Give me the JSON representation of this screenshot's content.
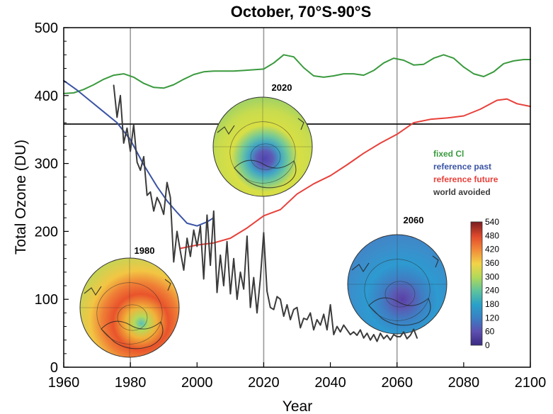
{
  "chart_data": {
    "type": "line",
    "title": "October, 70°S-90°S",
    "xlabel": "Year",
    "ylabel": "Total Ozone (DU)",
    "xlim": [
      1960,
      2100
    ],
    "ylim": [
      0,
      500
    ],
    "xticks": [
      "1960",
      "1980",
      "2000",
      "2020",
      "2040",
      "2060",
      "2080",
      "2100"
    ],
    "yticks": [
      "0",
      "100",
      "200",
      "300",
      "400",
      "500"
    ],
    "reference_lines": {
      "vertical_years": [
        1980,
        2020,
        2060
      ],
      "horizontal_value": 358
    },
    "legend_placement": "right",
    "series": [
      {
        "name": "fixed Cl",
        "color": "#3a9a3e",
        "x": [
          1960,
          1963,
          1966,
          1969,
          1972,
          1975,
          1978,
          1981,
          1984,
          1987,
          1990,
          1993,
          1996,
          1999,
          2002,
          2005,
          2008,
          2011,
          2014,
          2017,
          2020,
          2023,
          2026,
          2029,
          2032,
          2035,
          2038,
          2041,
          2044,
          2047,
          2050,
          2053,
          2056,
          2059,
          2062,
          2065,
          2068,
          2071,
          2074,
          2077,
          2080,
          2083,
          2086,
          2089,
          2092,
          2095,
          2098,
          2100
        ],
        "values": [
          403,
          404,
          409,
          416,
          424,
          430,
          432,
          427,
          418,
          412,
          411,
          416,
          424,
          431,
          435,
          436,
          436,
          436,
          437,
          438,
          439,
          448,
          460,
          457,
          441,
          429,
          427,
          429,
          432,
          432,
          430,
          437,
          448,
          455,
          452,
          445,
          446,
          455,
          460,
          455,
          442,
          432,
          428,
          435,
          447,
          451,
          453,
          453
        ]
      },
      {
        "name": "reference past",
        "color": "#3a53a4",
        "x": [
          1960,
          1964,
          1968,
          1972,
          1976,
          1980,
          1984,
          1988,
          1991,
          1994,
          1997,
          2000,
          2003,
          2005
        ],
        "values": [
          422,
          408,
          392,
          376,
          360,
          335,
          298,
          266,
          245,
          228,
          212,
          208,
          214,
          220
        ]
      },
      {
        "name": "reference future",
        "color": "#e8403a",
        "x": [
          1995,
          2000,
          2005,
          2010,
          2015,
          2020,
          2025,
          2030,
          2035,
          2040,
          2045,
          2050,
          2055,
          2060,
          2065,
          2070,
          2075,
          2080,
          2085,
          2090,
          2093,
          2096,
          2100
        ],
        "values": [
          175,
          180,
          183,
          190,
          205,
          223,
          232,
          255,
          270,
          282,
          298,
          315,
          330,
          343,
          360,
          365,
          367,
          370,
          380,
          393,
          395,
          388,
          384
        ]
      },
      {
        "name": "world avoided",
        "color": "#3b3b3b",
        "x": [
          1975,
          1976,
          1977,
          1978,
          1979,
          1980,
          1981,
          1982,
          1983,
          1984,
          1985,
          1986,
          1987,
          1988,
          1989,
          1990,
          1991,
          1992,
          1993,
          1994,
          1995,
          1996,
          1997,
          1998,
          1999,
          2000,
          2001,
          2002,
          2003,
          2004,
          2005,
          2006,
          2007,
          2008,
          2009,
          2010,
          2011,
          2012,
          2013,
          2014,
          2015,
          2016,
          2017,
          2018,
          2019,
          2020,
          2021,
          2022,
          2023,
          2024,
          2025,
          2026,
          2027,
          2028,
          2029,
          2030,
          2031,
          2032,
          2033,
          2034,
          2035,
          2036,
          2037,
          2038,
          2039,
          2040,
          2041,
          2042,
          2043,
          2044,
          2045,
          2046,
          2047,
          2048,
          2049,
          2050,
          2051,
          2052,
          2053,
          2054,
          2055,
          2056,
          2057,
          2058,
          2059,
          2060,
          2061,
          2062,
          2063,
          2064,
          2065,
          2066
        ],
        "values": [
          415,
          368,
          400,
          330,
          352,
          318,
          357,
          302,
          290,
          310,
          253,
          258,
          230,
          250,
          240,
          225,
          272,
          250,
          155,
          200,
          170,
          143,
          190,
          163,
          202,
          178,
          208,
          130,
          224,
          150,
          230,
          110,
          165,
          120,
          185,
          108,
          160,
          100,
          140,
          115,
          193,
          88,
          132,
          80,
          130,
          198,
          112,
          88,
          85,
          104,
          100,
          75,
          92,
          70,
          85,
          88,
          58,
          72,
          70,
          80,
          55,
          70,
          62,
          78,
          55,
          92,
          48,
          60,
          52,
          62,
          55,
          48,
          52,
          47,
          55,
          43,
          50,
          40,
          48,
          38,
          50,
          42,
          47,
          40,
          48,
          45,
          45,
          52,
          42,
          47,
          56,
          43
        ]
      }
    ],
    "insets": [
      {
        "label": "1980"
      },
      {
        "label": "2020"
      },
      {
        "label": "2060"
      }
    ],
    "colorbar": {
      "ticks": [
        "540",
        "480",
        "420",
        "360",
        "300",
        "240",
        "180",
        "120",
        "60",
        "0"
      ],
      "range": [
        0,
        540
      ]
    }
  }
}
